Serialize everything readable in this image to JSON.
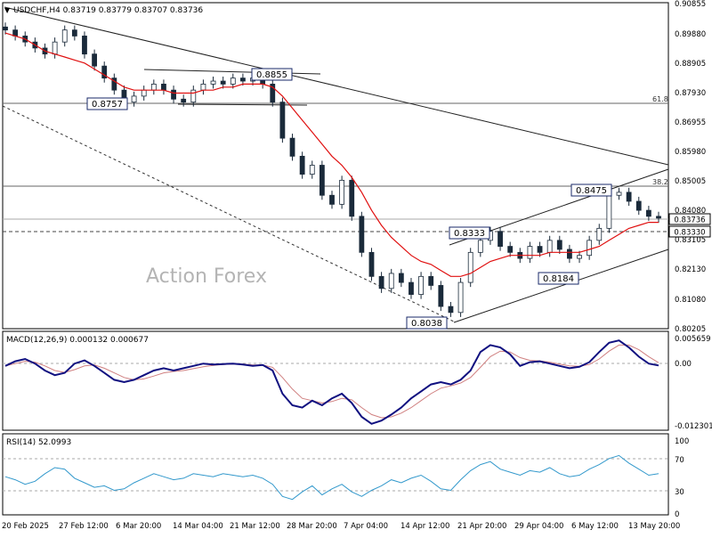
{
  "main_panel": {
    "header": "USDCHF,H4  0.83719 0.83779 0.83707 0.83736",
    "watermark": "Action Forex",
    "y_ticks": [
      "0.90855",
      "0.89880",
      "0.88905",
      "0.87930",
      "0.86955",
      "0.85980",
      "0.85005",
      "0.84080",
      "0.83105",
      "0.82130",
      "0.81080",
      "0.80205"
    ],
    "current_price": "0.83736",
    "level_price": "0.83330",
    "fib_labels": [
      "61.8",
      "38.2"
    ],
    "pivot_labels": [
      "0.8757",
      "0.8855",
      "0.8038",
      "0.8333",
      "0.8475",
      "0.8184"
    ]
  },
  "macd_panel": {
    "header": "MACD(12,26,9) 0.000132 0.000677",
    "y_ticks": [
      "0.005659",
      "0.00",
      "-0.012301"
    ]
  },
  "rsi_panel": {
    "header": "RSI(14) 52.0993",
    "y_ticks": [
      "100",
      "70",
      "30",
      "0"
    ]
  },
  "x_axis": {
    "tick_labels": [
      "20 Feb 2025",
      "27 Feb 12:00",
      "6 Mar 20:00",
      "14 Mar 04:00",
      "21 Mar 12:00",
      "28 Mar 20:00",
      "7 Apr 04:00",
      "14 Apr 12:00",
      "21 Apr 20:00",
      "29 Apr 04:00",
      "6 May 12:00",
      "13 May 20:00"
    ]
  },
  "colors": {
    "candle": "#1a2a3a",
    "ma": "#e01010",
    "macd": "#101080",
    "signal": "#d08080",
    "rsi": "#3399cc",
    "level_line": "#555555",
    "trend_line": "#222222"
  },
  "chart_data": {
    "type": "candlestick",
    "symbol": "USDCHF",
    "timeframe": "H4",
    "ylim": [
      0.8015,
      0.9085
    ],
    "close_series_approx": [
      0.9,
      0.898,
      0.896,
      0.894,
      0.892,
      0.896,
      0.9,
      0.898,
      0.892,
      0.888,
      0.884,
      0.88,
      0.876,
      0.878,
      0.88,
      0.882,
      0.88,
      0.877,
      0.876,
      0.88,
      0.882,
      0.883,
      0.882,
      0.884,
      0.883,
      0.884,
      0.882,
      0.876,
      0.864,
      0.858,
      0.852,
      0.855,
      0.845,
      0.842,
      0.85,
      0.838,
      0.826,
      0.818,
      0.814,
      0.819,
      0.816,
      0.812,
      0.818,
      0.815,
      0.808,
      0.806,
      0.816,
      0.826,
      0.83,
      0.833,
      0.828,
      0.826,
      0.824,
      0.828,
      0.826,
      0.83,
      0.827,
      0.824,
      0.825,
      0.83,
      0.834,
      0.845,
      0.846,
      0.843,
      0.84,
      0.838,
      0.8374
    ],
    "moving_average_approx": [
      0.899,
      0.898,
      0.897,
      0.895,
      0.893,
      0.892,
      0.891,
      0.89,
      0.889,
      0.887,
      0.885,
      0.883,
      0.881,
      0.88,
      0.88,
      0.88,
      0.88,
      0.879,
      0.879,
      0.879,
      0.88,
      0.88,
      0.881,
      0.881,
      0.882,
      0.882,
      0.882,
      0.881,
      0.878,
      0.874,
      0.87,
      0.866,
      0.862,
      0.858,
      0.855,
      0.851,
      0.846,
      0.84,
      0.835,
      0.831,
      0.828,
      0.825,
      0.823,
      0.822,
      0.82,
      0.818,
      0.818,
      0.819,
      0.821,
      0.823,
      0.824,
      0.825,
      0.825,
      0.825,
      0.825,
      0.826,
      0.826,
      0.826,
      0.826,
      0.827,
      0.828,
      0.83,
      0.832,
      0.834,
      0.835,
      0.836,
      0.836
    ],
    "levels": [
      0.8475,
      0.8333,
      0.8757
    ],
    "macd_range": [
      -0.0135,
      0.0065
    ],
    "macd_series_approx": [
      0.0,
      0.001,
      0.0015,
      0.0005,
      -0.001,
      -0.002,
      -0.0015,
      0.0005,
      0.0012,
      0.0,
      -0.0015,
      -0.003,
      -0.0035,
      -0.003,
      -0.002,
      -0.001,
      -0.0005,
      -0.001,
      -0.0005,
      0.0,
      0.0005,
      0.0003,
      0.0004,
      0.0005,
      0.0003,
      0.0,
      0.0002,
      -0.001,
      -0.006,
      -0.0085,
      -0.009,
      -0.0075,
      -0.0085,
      -0.007,
      -0.006,
      -0.008,
      -0.011,
      -0.0125,
      -0.0118,
      -0.0105,
      -0.009,
      -0.007,
      -0.0055,
      -0.004,
      -0.0035,
      -0.004,
      -0.003,
      -0.001,
      0.003,
      0.0045,
      0.004,
      0.0025,
      0.0,
      0.0008,
      0.001,
      0.0005,
      0.0,
      -0.0005,
      -0.0002,
      0.0008,
      0.003,
      0.005,
      0.0055,
      0.004,
      0.002,
      0.0005,
      0.0001
    ],
    "signal_series_approx": [
      0.0,
      0.0005,
      0.001,
      0.0008,
      0.0,
      -0.001,
      -0.0014,
      -0.0008,
      0.0,
      0.0002,
      -0.0005,
      -0.0015,
      -0.0025,
      -0.003,
      -0.0028,
      -0.0022,
      -0.0015,
      -0.0012,
      -0.001,
      -0.0006,
      -0.0002,
      0.0001,
      0.0003,
      0.0004,
      0.0004,
      0.0002,
      0.0002,
      -0.0003,
      -0.0025,
      -0.005,
      -0.007,
      -0.0075,
      -0.008,
      -0.0077,
      -0.007,
      -0.0073,
      -0.009,
      -0.0105,
      -0.0112,
      -0.011,
      -0.0102,
      -0.009,
      -0.0075,
      -0.006,
      -0.0048,
      -0.0043,
      -0.0037,
      -0.0025,
      -0.0003,
      0.002,
      0.0032,
      0.003,
      0.0018,
      0.0012,
      0.0011,
      0.0008,
      0.0004,
      0.0,
      -0.0001,
      0.0003,
      0.0015,
      0.0032,
      0.0045,
      0.0045,
      0.0035,
      0.002,
      0.0007
    ],
    "rsi_series_approx": [
      48,
      44,
      38,
      42,
      52,
      60,
      58,
      46,
      40,
      34,
      36,
      30,
      32,
      40,
      46,
      52,
      48,
      44,
      46,
      52,
      50,
      48,
      52,
      50,
      48,
      50,
      46,
      38,
      22,
      18,
      28,
      36,
      24,
      32,
      38,
      28,
      22,
      30,
      36,
      44,
      40,
      46,
      50,
      42,
      32,
      30,
      44,
      56,
      64,
      68,
      58,
      54,
      50,
      56,
      54,
      60,
      52,
      48,
      50,
      58,
      64,
      72,
      76,
      66,
      58,
      50,
      52.1
    ]
  }
}
